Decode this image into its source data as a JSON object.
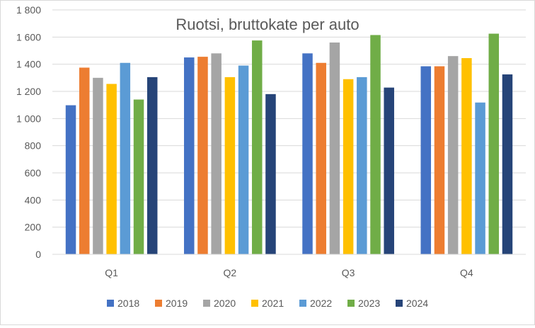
{
  "chart_data": {
    "type": "bar",
    "title": "Ruotsi, bruttokate per auto",
    "xlabel": "",
    "ylabel": "",
    "categories": [
      "Q1",
      "Q2",
      "Q3",
      "Q4"
    ],
    "ylim": [
      0,
      1800
    ],
    "yticks": [
      0,
      200,
      400,
      600,
      800,
      1000,
      1200,
      1400,
      1600,
      1800
    ],
    "ytick_labels": [
      "0",
      "200",
      "400",
      "600",
      "800",
      "1 000",
      "1 200",
      "1 400",
      "1 600",
      "1 800"
    ],
    "grid": true,
    "legend_position": "bottom",
    "series": [
      {
        "name": "2018",
        "color": "#4472c4",
        "values": [
          1098,
          1450,
          1480,
          1385
        ]
      },
      {
        "name": "2019",
        "color": "#ed7d31",
        "values": [
          1375,
          1455,
          1410,
          1385
        ]
      },
      {
        "name": "2020",
        "color": "#a5a5a5",
        "values": [
          1300,
          1480,
          1560,
          1460
        ]
      },
      {
        "name": "2021",
        "color": "#ffc000",
        "values": [
          1255,
          1305,
          1290,
          1445
        ]
      },
      {
        "name": "2022",
        "color": "#5b9bd5",
        "values": [
          1410,
          1390,
          1305,
          1118
        ]
      },
      {
        "name": "2023",
        "color": "#70ad47",
        "values": [
          1140,
          1575,
          1615,
          1625
        ]
      },
      {
        "name": "2024",
        "color": "#264478",
        "values": [
          1305,
          1180,
          1228,
          1325
        ]
      }
    ]
  }
}
